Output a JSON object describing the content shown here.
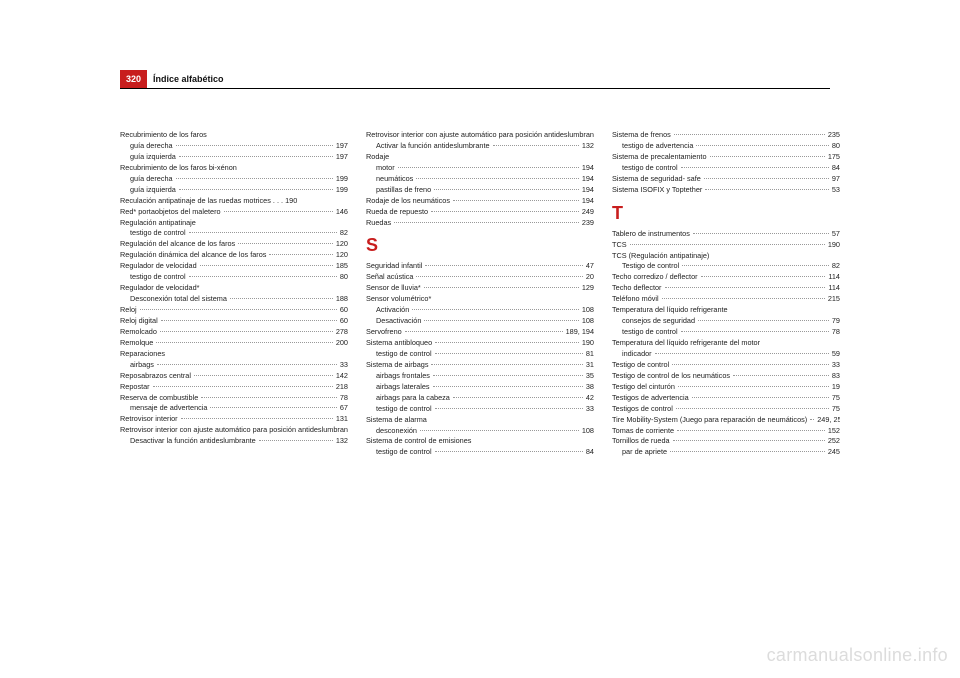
{
  "header": {
    "page_number": "320",
    "title": "Índice alfabético",
    "page_number_bg": "#c81e1e",
    "page_number_fg": "#ffffff"
  },
  "watermark": "carmanualsonline.info",
  "columns": [
    {
      "items": [
        {
          "label": "Recubrimiento de los faros",
          "page": "",
          "nodots": true
        },
        {
          "label": "guía derecha",
          "page": "197",
          "sub": true
        },
        {
          "label": "guía izquierda",
          "page": "197",
          "sub": true
        },
        {
          "label": "Recubrimiento de los faros bi-xénon",
          "page": "",
          "nodots": true
        },
        {
          "label": "guía derecha",
          "page": "199",
          "sub": true
        },
        {
          "label": "guía izquierda",
          "page": "199",
          "sub": true
        },
        {
          "label": "Reculación antipatinaje de las ruedas motrices . . . 190",
          "page": "",
          "nodots": true,
          "wrap": true
        },
        {
          "label": "Red* portaobjetos del maletero",
          "page": "146"
        },
        {
          "label": "Regulación antipatinaje",
          "page": "",
          "nodots": true
        },
        {
          "label": "testigo de control",
          "page": "82",
          "sub": true
        },
        {
          "label": "Regulación del alcance de los faros",
          "page": "120"
        },
        {
          "label": "Regulación dinámica del alcance de los faros",
          "page": "120"
        },
        {
          "label": "Regulador de velocidad",
          "page": "185"
        },
        {
          "label": "testigo de control",
          "page": "80",
          "sub": true
        },
        {
          "label": "Regulador de velocidad*",
          "page": "",
          "nodots": true
        },
        {
          "label": "Desconexión total del sistema",
          "page": "188",
          "sub": true
        },
        {
          "label": "Reloj",
          "page": "60"
        },
        {
          "label": "Reloj digital",
          "page": "60"
        },
        {
          "label": "Remolcado",
          "page": "278"
        },
        {
          "label": "Remolque",
          "page": "200"
        },
        {
          "label": "Reparaciones",
          "page": "",
          "nodots": true
        },
        {
          "label": "airbags",
          "page": "33",
          "sub": true
        },
        {
          "label": "Reposabrazos central",
          "page": "142"
        },
        {
          "label": "Repostar",
          "page": "218"
        },
        {
          "label": "Reserva de combustible",
          "page": "78"
        },
        {
          "label": "mensaje de advertencia",
          "page": "67",
          "sub": true
        },
        {
          "label": "Retrovisor interior",
          "page": "131"
        },
        {
          "label": "Retrovisor interior con ajuste automático para posición antideslumbrante",
          "page": "",
          "nodots": true,
          "wrap": true
        },
        {
          "label": "Desactivar la función antideslumbrante",
          "page": "132",
          "sub": true
        }
      ]
    },
    {
      "items": [
        {
          "label": "Retrovisor interior con ajuste automático para posición antideslumbrante*",
          "page": "",
          "nodots": true,
          "wrap": true
        },
        {
          "label": "Activar la función antideslumbrante",
          "page": "132",
          "sub": true
        },
        {
          "label": "Rodaje",
          "page": "",
          "nodots": true
        },
        {
          "label": "motor",
          "page": "194",
          "sub": true
        },
        {
          "label": "neumáticos",
          "page": "194",
          "sub": true
        },
        {
          "label": "pastillas de freno",
          "page": "194",
          "sub": true
        },
        {
          "label": "Rodaje de los neumáticos",
          "page": "194"
        },
        {
          "label": "Rueda de repuesto",
          "page": "249"
        },
        {
          "label": "Ruedas",
          "page": "239"
        },
        {
          "letter": "S"
        },
        {
          "label": "Seguridad infantil",
          "page": "47"
        },
        {
          "label": "Señal acústica",
          "page": "20"
        },
        {
          "label": "Sensor de lluvia*",
          "page": "129"
        },
        {
          "label": "Sensor volumétrico*",
          "page": "",
          "nodots": true
        },
        {
          "label": "Activación",
          "page": "108",
          "sub": true
        },
        {
          "label": "Desactivación",
          "page": "108",
          "sub": true
        },
        {
          "label": "Servofreno",
          "page": "189, 194"
        },
        {
          "label": "Sistema antibloqueo",
          "page": "190"
        },
        {
          "label": "testigo de control",
          "page": "81",
          "sub": true
        },
        {
          "label": "Sistema de airbags",
          "page": "31"
        },
        {
          "label": "airbags frontales",
          "page": "35",
          "sub": true
        },
        {
          "label": "airbags laterales",
          "page": "38",
          "sub": true
        },
        {
          "label": "airbags para la cabeza",
          "page": "42",
          "sub": true
        },
        {
          "label": "testigo de control",
          "page": "33",
          "sub": true
        },
        {
          "label": "Sistema de alarma",
          "page": "",
          "nodots": true
        },
        {
          "label": "desconexión",
          "page": "108",
          "sub": true
        },
        {
          "label": "Sistema de control de emisiones",
          "page": "",
          "nodots": true
        },
        {
          "label": "testigo de control",
          "page": "84",
          "sub": true
        }
      ]
    },
    {
      "items": [
        {
          "label": "Sistema de frenos",
          "page": "235"
        },
        {
          "label": "testigo de advertencia",
          "page": "80",
          "sub": true
        },
        {
          "label": "Sistema de precalentamiento",
          "page": "175"
        },
        {
          "label": "testigo de control",
          "page": "84",
          "sub": true
        },
        {
          "label": "Sistema de seguridad- safe",
          "page": "97"
        },
        {
          "label": "Sistema ISOFIX y Toptether",
          "page": "53"
        },
        {
          "letter": "T"
        },
        {
          "label": "Tablero de instrumentos",
          "page": "57"
        },
        {
          "label": "TCS",
          "page": "190"
        },
        {
          "label": "TCS (Regulación antipatinaje)",
          "page": "",
          "nodots": true
        },
        {
          "label": "Testigo de control",
          "page": "82",
          "sub": true
        },
        {
          "label": "Techo corredizo / deflector",
          "page": "114"
        },
        {
          "label": "Techo deflector",
          "page": "114"
        },
        {
          "label": "Teléfono móvil",
          "page": "215"
        },
        {
          "label": "Temperatura del líquido refrigerante",
          "page": "",
          "nodots": true
        },
        {
          "label": "consejos de seguridad",
          "page": "79",
          "sub": true
        },
        {
          "label": "testigo de control",
          "page": "78",
          "sub": true
        },
        {
          "label": "Temperatura del líquido refrigerante del motor",
          "page": "",
          "nodots": true
        },
        {
          "label": "indicador",
          "page": "59",
          "sub": true
        },
        {
          "label": "Testigo de control",
          "page": "33"
        },
        {
          "label": "Testigo de control de los neumáticos",
          "page": "83"
        },
        {
          "label": "Testigo del cinturón",
          "page": "19"
        },
        {
          "label": "Testigos de advertencia",
          "page": "75"
        },
        {
          "label": "Testigos de control",
          "page": "75"
        },
        {
          "label": "Tire Mobility-System (Juego para reparación de neumáticos)",
          "page": "249, 256",
          "wrap": true
        },
        {
          "label": "Tomas de corriente",
          "page": "152"
        },
        {
          "label": "Tornillos de rueda",
          "page": "252"
        },
        {
          "label": "par de apriete",
          "page": "245",
          "sub": true
        }
      ]
    }
  ]
}
